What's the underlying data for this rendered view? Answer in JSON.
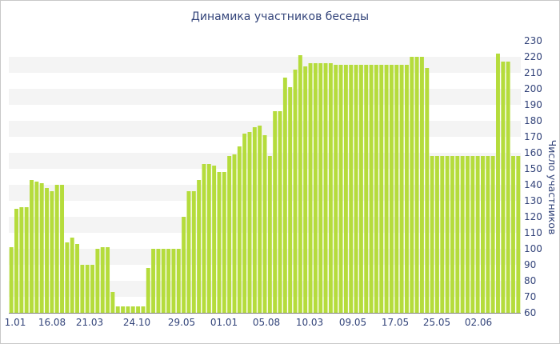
{
  "chart_data": {
    "type": "bar",
    "title": "Динамика участников беседы",
    "xlabel": "",
    "ylabel": "Число участников",
    "ylim": [
      60,
      230
    ],
    "yticks": [
      60,
      70,
      80,
      90,
      100,
      110,
      120,
      130,
      140,
      150,
      160,
      170,
      180,
      190,
      200,
      210,
      220,
      230
    ],
    "x_tick_labels": [
      "1.01",
      "16.08",
      "21.03",
      "24.10",
      "29.05",
      "01.01",
      "05.08",
      "10.03",
      "09.05",
      "17.05",
      "25.05",
      "02.06"
    ],
    "grid": "horizontal bands",
    "color": "#b5dc3c",
    "values": [
      101,
      125,
      126,
      126,
      143,
      142,
      141,
      138,
      136,
      140,
      140,
      104,
      107,
      103,
      90,
      90,
      90,
      100,
      101,
      101,
      73,
      64,
      64,
      64,
      64,
      64,
      64,
      88,
      100,
      100,
      100,
      100,
      100,
      100,
      120,
      136,
      136,
      143,
      153,
      153,
      152,
      148,
      148,
      158,
      159,
      164,
      172,
      173,
      176,
      177,
      171,
      158,
      186,
      186,
      207,
      201,
      212,
      221,
      214,
      216,
      216,
      216,
      216,
      216,
      215,
      215,
      215,
      215,
      215,
      215,
      215,
      215,
      215,
      215,
      215,
      215,
      215,
      215,
      215,
      220,
      220,
      220,
      213,
      158,
      158,
      158,
      158,
      158,
      158,
      158,
      158,
      158,
      158,
      158,
      158,
      158,
      222,
      217,
      217,
      158,
      158
    ]
  }
}
